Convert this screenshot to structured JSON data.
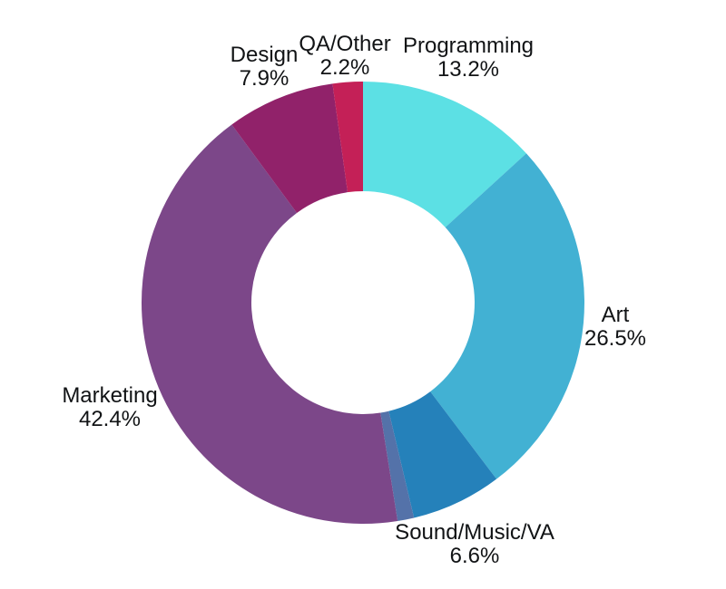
{
  "chart_data": {
    "type": "pie",
    "subtype": "donut",
    "title": "",
    "unit": "%",
    "direction": "clockwise",
    "start_angle_deg": 0,
    "legend": "none",
    "labels_position": "outside",
    "background_color": "#ffffff",
    "label_text_color": "#111315",
    "segments": [
      {
        "id": "programming",
        "label": "Programming",
        "value": 13.2,
        "pct_label": "13.2%",
        "color": "#5CE0E4"
      },
      {
        "id": "art",
        "label": "Art",
        "value": 26.5,
        "pct_label": "26.5%",
        "color": "#42B1D3"
      },
      {
        "id": "sound-music-va",
        "label": "Sound/Music/VA",
        "value": 6.6,
        "pct_label": "6.6%",
        "color": "#2581BA"
      },
      {
        "id": "unlabeled-sliver",
        "label": "",
        "value": 1.2,
        "pct_label": "",
        "color": "#5472A9"
      },
      {
        "id": "marketing",
        "label": "Marketing",
        "value": 42.4,
        "pct_label": "42.4%",
        "color": "#7C4789"
      },
      {
        "id": "design",
        "label": "Design",
        "value": 7.9,
        "pct_label": "7.9%",
        "color": "#91226A"
      },
      {
        "id": "qa-other",
        "label": "QA/Other",
        "value": 2.2,
        "pct_label": "2.2%",
        "color": "#C42057"
      }
    ]
  }
}
